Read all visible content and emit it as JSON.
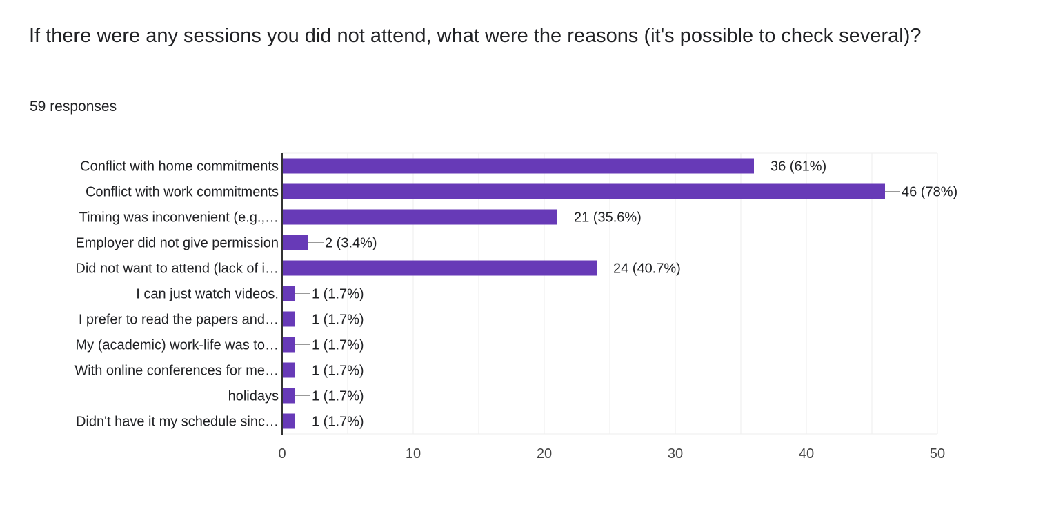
{
  "question": {
    "title": "If there were any sessions you did not attend, what were the reasons (it's possible to check several)?",
    "responses": "59 responses"
  },
  "colors": {
    "bar": "#673ab7",
    "text": "#202124",
    "grid": "#eeeeee",
    "leader": "#999999"
  },
  "chart_data": {
    "type": "bar",
    "orientation": "horizontal",
    "categories": [
      "Conflict with home commitments",
      "Conflict with work commitments",
      "Timing was inconvenient (e.g.,…",
      "Employer did not give permission",
      "Did not want to attend (lack of i…",
      "I can just watch videos.",
      "I prefer to read the papers and…",
      "My (academic) work-life was to…",
      "With online conferences for me…",
      "holidays",
      "Didn't have it my schedule sinc…"
    ],
    "values": [
      36,
      46,
      21,
      2,
      24,
      1,
      1,
      1,
      1,
      1,
      1
    ],
    "data_labels": [
      "36 (61%)",
      "46 (78%)",
      "21 (35.6%)",
      "2 (3.4%)",
      "24 (40.7%)",
      "1 (1.7%)",
      "1 (1.7%)",
      "1 (1.7%)",
      "1 (1.7%)",
      "1 (1.7%)",
      "1 (1.7%)"
    ],
    "x_ticks": [
      0,
      10,
      20,
      30,
      40,
      50
    ],
    "xlim": [
      0,
      50
    ],
    "grid": true,
    "legend": "none"
  }
}
